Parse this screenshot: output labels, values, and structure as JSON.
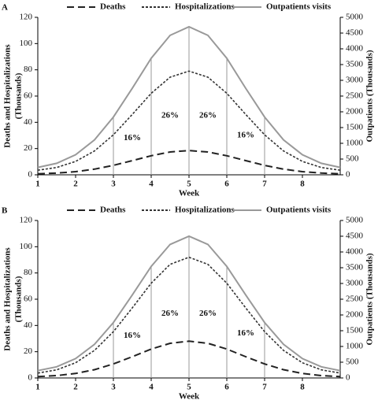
{
  "chart_data": [
    {
      "type": "line",
      "panel": "A",
      "x_label": "Week",
      "y_label": [
        "Deaths and Hospitalizations",
        "(Thousands)"
      ],
      "y2_label": "Outpatients (Thousands)",
      "x": [
        1,
        1.5,
        2,
        2.5,
        3,
        3.5,
        4,
        4.5,
        5,
        5.5,
        6,
        6.5,
        7,
        7.5,
        8,
        8.5,
        9
      ],
      "xlim": [
        1,
        9
      ],
      "xticks": [
        1,
        2,
        3,
        4,
        5,
        6,
        7,
        8
      ],
      "ylim": [
        0,
        120
      ],
      "yticks": [
        0,
        20,
        40,
        60,
        80,
        100,
        120
      ],
      "y2lim": [
        0,
        5000
      ],
      "y2ticks": [
        0,
        500,
        1000,
        1500,
        2000,
        2500,
        3000,
        3500,
        4000,
        4500,
        5000
      ],
      "series": [
        {
          "name": "Deaths",
          "color": "#222222",
          "linestyle": "dashed",
          "values": [
            0.8,
            1.3,
            2.4,
            4.3,
            7.2,
            10.8,
            14.5,
            17.4,
            18.5,
            17.4,
            14.5,
            10.8,
            7.2,
            4.3,
            2.4,
            1.3,
            0.8
          ]
        },
        {
          "name": "Hospitalizations",
          "color": "#333333",
          "linestyle": "dotted",
          "values": [
            3.5,
            5.6,
            10.2,
            18.2,
            30.5,
            46.0,
            62.1,
            74.4,
            79,
            74.4,
            62.1,
            46.0,
            30.5,
            18.2,
            10.2,
            5.6,
            3.5
          ]
        },
        {
          "name": "Outpatients visits",
          "color": "#999999",
          "linestyle": "solid",
          "axis": "y2",
          "values": [
            236,
            364,
            637,
            1110,
            1834,
            2748,
            3699,
            4427,
            4700,
            4427,
            3699,
            2748,
            1834,
            1110,
            637,
            364,
            236
          ]
        }
      ],
      "vlines": [
        3,
        4,
        5,
        6,
        7
      ],
      "annotations": [
        {
          "text": "16%",
          "x": 3.5,
          "y": 28
        },
        {
          "text": "26%",
          "x": 4.5,
          "y": 45
        },
        {
          "text": "26%",
          "x": 5.5,
          "y": 45
        },
        {
          "text": "16%",
          "x": 6.5,
          "y": 30
        }
      ]
    },
    {
      "type": "line",
      "panel": "B",
      "x_label": "Week",
      "y_label": [
        "Deaths and Hospitalizations",
        "(Thousands)"
      ],
      "y2_label": "Outpatients (Thousands)",
      "x": [
        1,
        1.5,
        2,
        2.5,
        3,
        3.5,
        4,
        4.5,
        5,
        5.5,
        6,
        6.5,
        7,
        7.5,
        8,
        8.5,
        9
      ],
      "xlim": [
        1,
        9
      ],
      "xticks": [
        1,
        2,
        3,
        4,
        5,
        6,
        7,
        8
      ],
      "ylim": [
        0,
        120
      ],
      "yticks": [
        0,
        20,
        40,
        60,
        80,
        100,
        120
      ],
      "y2lim": [
        0,
        5000
      ],
      "y2ticks": [
        0,
        500,
        1000,
        1500,
        2000,
        2500,
        3000,
        3500,
        4000,
        4500,
        5000
      ],
      "series": [
        {
          "name": "Deaths",
          "color": "#222222",
          "linestyle": "dashed",
          "values": [
            1.0,
            1.8,
            3.4,
            6.3,
            10.7,
            16.2,
            22.0,
            26.4,
            28,
            26.4,
            22.0,
            16.2,
            10.7,
            6.3,
            3.4,
            1.8,
            1.0
          ]
        },
        {
          "name": "Hospitalizations",
          "color": "#333333",
          "linestyle": "dotted",
          "values": [
            3.7,
            6.2,
            11.6,
            21.0,
            35.3,
            53.4,
            72.2,
            86.6,
            92,
            86.6,
            72.2,
            53.4,
            35.3,
            21.0,
            11.6,
            6.2,
            3.7
          ]
        },
        {
          "name": "Outpatients visits",
          "color": "#999999",
          "linestyle": "solid",
          "axis": "y2",
          "values": [
            233,
            354,
            615,
            1068,
            1760,
            2634,
            3543,
            4239,
            4500,
            4239,
            3543,
            2634,
            1760,
            1068,
            615,
            354,
            233
          ]
        }
      ],
      "vlines": [
        3,
        4,
        5,
        6,
        7
      ],
      "annotations": [
        {
          "text": "16%",
          "x": 3.5,
          "y": 32
        },
        {
          "text": "26%",
          "x": 4.5,
          "y": 49
        },
        {
          "text": "26%",
          "x": 5.5,
          "y": 49
        },
        {
          "text": "16%",
          "x": 6.5,
          "y": 34
        }
      ]
    }
  ]
}
